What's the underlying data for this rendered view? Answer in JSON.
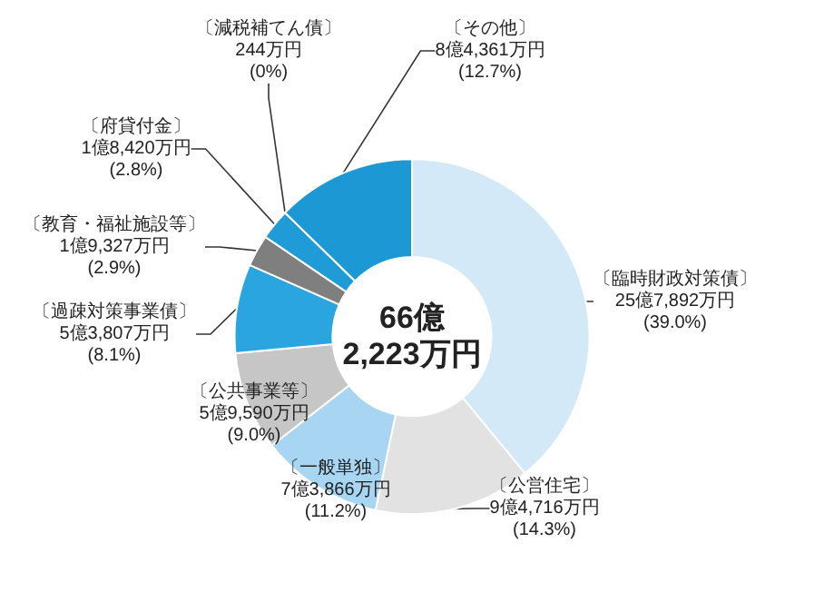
{
  "chart_data": {
    "type": "donut",
    "categories": [
      "〔臨時財政対策債〕",
      "〔公営住宅〕",
      "〔一般単独〕",
      "〔公共事業等〕",
      "〔過疎対策事業債〕",
      "〔教育・福祉施設等〕",
      "〔府貸付金〕",
      "〔減税補てん債〕",
      "〔その他〕"
    ],
    "values": [
      39.0,
      14.3,
      11.2,
      9.0,
      8.1,
      2.9,
      2.8,
      0,
      12.7
    ],
    "value_labels": [
      "25億7,892万円\n(39.0%)",
      "9億4,716万円\n(14.3%)",
      "7億3,866万円\n(11.2%)",
      "5億9,590万円\n(9.0%)",
      "5億3,807万円\n(8.1%)",
      "1億9,327万円\n(2.9%)",
      "1億8,420万円\n(2.8%)",
      "244万円\n(0%)",
      "8億4,361万円\n(12.7%)"
    ],
    "colors": [
      "#d3e9f8",
      "#e2e2e2",
      "#a8d6f2",
      "#c6c6c6",
      "#2ba5df",
      "#7f7f7f",
      "#1f9bd8",
      "#f4f4f4",
      "#1c98d5"
    ],
    "annotations": [
      "66億\n2,223万円"
    ],
    "legend": false
  }
}
